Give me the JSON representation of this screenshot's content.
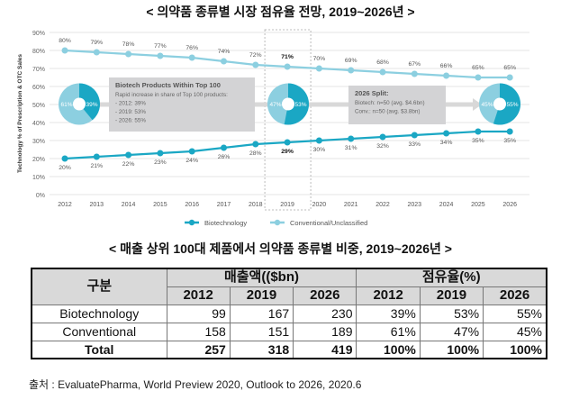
{
  "title": "< 의약품 종류별 시장 점유율 전망, 2019~2026년 >",
  "chart_data": {
    "type": "line",
    "ylabel": "Technology % of Prescription & OTC Sales",
    "categories": [
      "2012",
      "2013",
      "2014",
      "2015",
      "2016",
      "2017",
      "2018",
      "2019",
      "2020",
      "2021",
      "2022",
      "2023",
      "2024",
      "2025",
      "2026"
    ],
    "yticks": [
      "0%",
      "10%",
      "20%",
      "30%",
      "40%",
      "50%",
      "60%",
      "70%",
      "80%",
      "90%"
    ],
    "ylim": [
      0,
      90
    ],
    "grid": true,
    "legend_position": "bottom",
    "series": [
      {
        "name": "Biotechnology",
        "color": "#1aa7c4",
        "values": [
          20,
          21,
          22,
          23,
          24,
          26,
          28,
          29,
          30,
          31,
          32,
          33,
          34,
          35,
          35
        ]
      },
      {
        "name": "Conventional/Unclassified",
        "color": "#8ccfe0",
        "values": [
          80,
          79,
          78,
          77,
          76,
          74,
          72,
          71,
          70,
          69,
          68,
          67,
          66,
          65,
          65
        ]
      }
    ],
    "highlight_year": "2019",
    "donuts": [
      {
        "year": "2012",
        "biotech": 39,
        "conventional": 61
      },
      {
        "year": "2019",
        "biotech": 53,
        "conventional": 47
      },
      {
        "year": "2026",
        "biotech": 55,
        "conventional": 45
      }
    ],
    "annotations": [
      {
        "title": "Biotech Products Within Top 100",
        "lines": [
          "Rapid increase in share of Top 100 products:",
          "- 2012: 39%",
          "- 2019: 53%",
          "- 2026: 55%"
        ]
      },
      {
        "title": "2026 Split:",
        "lines": [
          "Biotech: n=50 (avg. $4.6bn)",
          "Conv.: n=50 (avg. $3.8bn)"
        ]
      }
    ]
  },
  "table_title": "< 매출 상위 100대 제품에서 의약품 종류별 비중, 2019~2026년 >",
  "table": {
    "col_group": "구분",
    "sales_header": "매출액(($bn)",
    "share_header": "점유율(%)",
    "years": [
      "2012",
      "2019",
      "2026",
      "2012",
      "2019",
      "2026"
    ],
    "rows": [
      {
        "label": "Biotechnology",
        "cells": [
          "99",
          "167",
          "230",
          "39%",
          "53%",
          "55%"
        ]
      },
      {
        "label": "Conventional",
        "cells": [
          "158",
          "151",
          "189",
          "61%",
          "47%",
          "45%"
        ]
      },
      {
        "label": "Total",
        "cells": [
          "257",
          "318",
          "419",
          "100%",
          "100%",
          "100%"
        ]
      }
    ]
  },
  "source": "출처 : EvaluatePharma, World Preview 2020, Outlook to 2026, 2020.6"
}
